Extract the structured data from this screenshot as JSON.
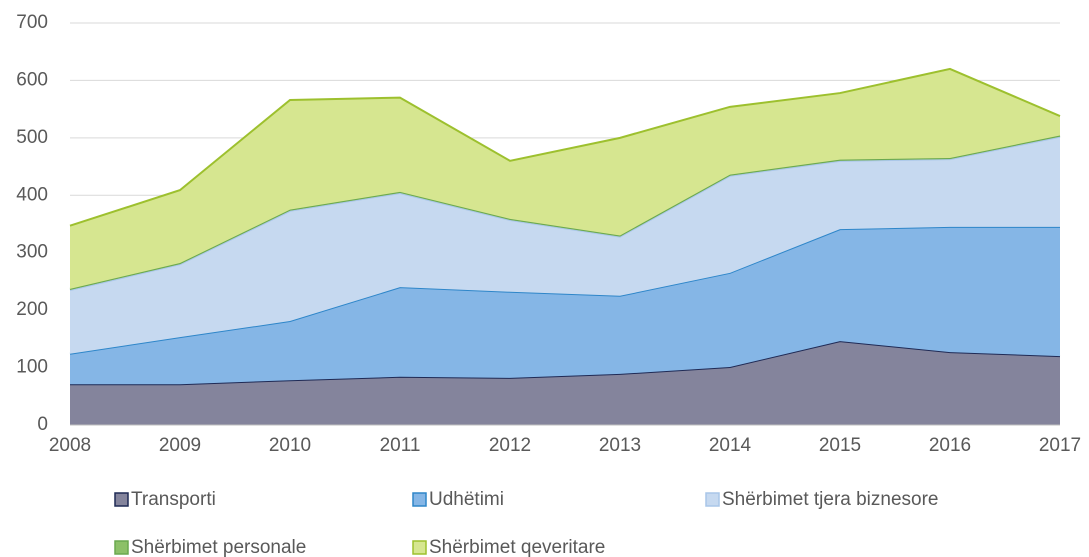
{
  "chart_data": {
    "type": "stacked_area",
    "categories": [
      "2008",
      "2009",
      "2010",
      "2011",
      "2012",
      "2013",
      "2014",
      "2015",
      "2016",
      "2017"
    ],
    "series": [
      {
        "name": "Transporti",
        "color": "#84849c",
        "line": "#1f2a55",
        "values": [
          71,
          71,
          78,
          84,
          82,
          89,
          101,
          146,
          127,
          120
        ]
      },
      {
        "name": "Udhëtimi",
        "color": "#85b6e6",
        "line": "#2e86c9",
        "values": [
          53,
          82,
          103,
          156,
          150,
          136,
          164,
          195,
          218,
          225
        ]
      },
      {
        "name": "Shërbimet tjera biznesore",
        "color": "#c6d9f0",
        "line": "#a9c6e8",
        "values": [
          111,
          127,
          192,
          164,
          125,
          103,
          169,
          119,
          118,
          157
        ]
      },
      {
        "name": "Shërbimet personale",
        "color": "#8cc068",
        "line": "#6aa84f",
        "values": [
          2,
          2,
          2,
          2,
          2,
          2,
          2,
          2,
          2,
          2
        ]
      },
      {
        "name": "Shërbimet qeveritare",
        "color": "#d6e690",
        "line": "#9dc02e",
        "values": [
          110,
          127,
          191,
          164,
          101,
          170,
          118,
          116,
          155,
          34
        ]
      }
    ],
    "ylim": [
      0,
      700
    ],
    "yticks": [
      0,
      100,
      200,
      300,
      400,
      500,
      600,
      700
    ],
    "grid": true
  }
}
